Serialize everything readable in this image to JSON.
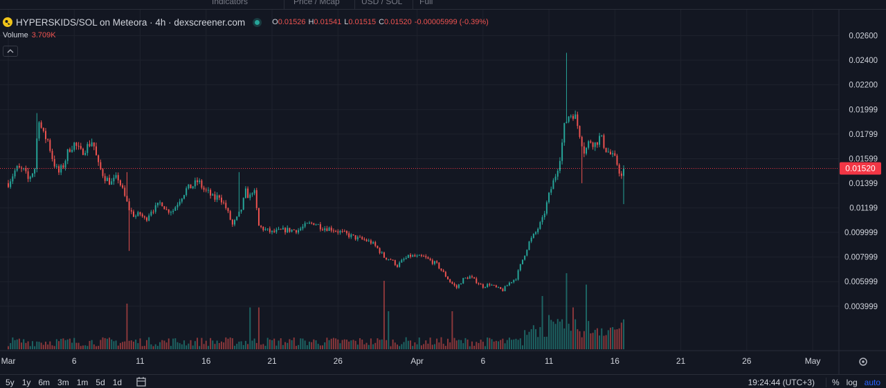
{
  "legend": {
    "symbol_title": "HYPERSKIDS/SOL on Meteora · 4h · dexscreener.com",
    "ohlc": [
      {
        "key": "O",
        "value": "0.01526"
      },
      {
        "key": "H",
        "value": "0.01541"
      },
      {
        "key": "L",
        "value": "0.01515"
      },
      {
        "key": "C",
        "value": "0.01520"
      },
      {
        "key": "",
        "value": "-0.00005999 (-0.39%)"
      }
    ],
    "volume_label": "Volume",
    "volume_value": "3.709K"
  },
  "toolbar": {
    "fragments": [
      "Indicators",
      "Price / Mcap",
      "USD / SOL",
      "Full"
    ]
  },
  "bottom_bar": {
    "ranges": [
      "5y",
      "1y",
      "6m",
      "3m",
      "1m",
      "5d",
      "1d"
    ],
    "clock": "19:24:44 (UTC+3)",
    "percent": "%",
    "log": "log",
    "auto": "auto"
  },
  "colors": {
    "background": "#131722",
    "up": "#26a69a",
    "down": "#ef5350",
    "grid": "#1e222d",
    "last_price_tag": "#f23645"
  },
  "chart_data": {
    "type": "candlestick",
    "title": "HYPERSKIDS/SOL on Meteora · 4h · dexscreener.com",
    "interval": "4h",
    "y_ticks": [
      "0.02600",
      "0.02400",
      "0.02200",
      "0.01999",
      "0.01799",
      "0.01599",
      "0.01399",
      "0.01199",
      "0.009999",
      "0.007999",
      "0.005999",
      "0.003999"
    ],
    "ylim": [
      0.0023,
      0.0267
    ],
    "x_ticks": [
      {
        "label": "Mar",
        "day": 0
      },
      {
        "label": "6",
        "day": 5
      },
      {
        "label": "11",
        "day": 10
      },
      {
        "label": "16",
        "day": 15
      },
      {
        "label": "21",
        "day": 20
      },
      {
        "label": "26",
        "day": 25
      },
      {
        "label": "Apr",
        "day": 31
      },
      {
        "label": "6",
        "day": 36
      },
      {
        "label": "11",
        "day": 41
      },
      {
        "label": "16",
        "day": 46
      },
      {
        "label": "21",
        "day": 51
      },
      {
        "label": "26",
        "day": 56
      },
      {
        "label": "May",
        "day": 61
      }
    ],
    "last_price": 0.0152,
    "last_price_label": "0.01520",
    "volume_label": "Volume",
    "volume_last": "3.709K",
    "price_anchors": [
      [
        0,
        0.014
      ],
      [
        0.6,
        0.0152
      ],
      [
        1.2,
        0.015
      ],
      [
        1.5,
        0.0143
      ],
      [
        2.0,
        0.0152
      ],
      [
        2.3,
        0.0195
      ],
      [
        2.6,
        0.018
      ],
      [
        3.0,
        0.0175
      ],
      [
        3.4,
        0.0158
      ],
      [
        3.8,
        0.0148
      ],
      [
        4.2,
        0.0155
      ],
      [
        4.6,
        0.0168
      ],
      [
        5.0,
        0.0172
      ],
      [
        5.5,
        0.0165
      ],
      [
        6.0,
        0.017
      ],
      [
        6.4,
        0.0175
      ],
      [
        6.8,
        0.0155
      ],
      [
        7.3,
        0.0145
      ],
      [
        7.8,
        0.014
      ],
      [
        8.3,
        0.0145
      ],
      [
        8.8,
        0.013
      ],
      [
        9.2,
        0.0118
      ],
      [
        9.6,
        0.0113
      ],
      [
        10.0,
        0.0115
      ],
      [
        10.4,
        0.011
      ],
      [
        10.8,
        0.0118
      ],
      [
        11.2,
        0.012
      ],
      [
        11.6,
        0.0125
      ],
      [
        12.0,
        0.0118
      ],
      [
        12.5,
        0.0118
      ],
      [
        13.0,
        0.0127
      ],
      [
        13.5,
        0.0135
      ],
      [
        14.0,
        0.0138
      ],
      [
        14.4,
        0.0142
      ],
      [
        14.8,
        0.0135
      ],
      [
        15.2,
        0.0132
      ],
      [
        15.6,
        0.0127
      ],
      [
        16.0,
        0.013
      ],
      [
        16.5,
        0.012
      ],
      [
        17.0,
        0.0106
      ],
      [
        17.4,
        0.0112
      ],
      [
        17.7,
        0.012
      ],
      [
        18.0,
        0.0133
      ],
      [
        18.3,
        0.0128
      ],
      [
        18.6,
        0.0137
      ],
      [
        19.0,
        0.0105
      ],
      [
        19.5,
        0.0102
      ],
      [
        20.0,
        0.01
      ],
      [
        21.0,
        0.0102
      ],
      [
        22.0,
        0.0102
      ],
      [
        22.6,
        0.0106
      ],
      [
        23.2,
        0.0108
      ],
      [
        23.8,
        0.0104
      ],
      [
        24.5,
        0.0103
      ],
      [
        25.0,
        0.0101
      ],
      [
        25.5,
        0.0099
      ],
      [
        26.0,
        0.0097
      ],
      [
        26.5,
        0.0095
      ],
      [
        27.0,
        0.0094
      ],
      [
        27.5,
        0.0092
      ],
      [
        28.0,
        0.0087
      ],
      [
        28.5,
        0.008
      ],
      [
        29.0,
        0.0078
      ],
      [
        29.5,
        0.0073
      ],
      [
        30.0,
        0.0078
      ],
      [
        30.5,
        0.0081
      ],
      [
        31.0,
        0.008
      ],
      [
        31.5,
        0.008
      ],
      [
        32.0,
        0.0077
      ],
      [
        32.5,
        0.0074
      ],
      [
        33.0,
        0.0067
      ],
      [
        33.5,
        0.006
      ],
      [
        34.0,
        0.0055
      ],
      [
        34.5,
        0.0062
      ],
      [
        35.0,
        0.0064
      ],
      [
        35.5,
        0.006
      ],
      [
        36.0,
        0.0056
      ],
      [
        36.5,
        0.0058
      ],
      [
        37.0,
        0.0055
      ],
      [
        37.5,
        0.0053
      ],
      [
        38.0,
        0.0059
      ],
      [
        38.5,
        0.0063
      ],
      [
        39.0,
        0.0078
      ],
      [
        39.5,
        0.0092
      ],
      [
        40.0,
        0.01
      ],
      [
        40.5,
        0.011
      ],
      [
        41.0,
        0.013
      ],
      [
        41.3,
        0.014
      ],
      [
        41.6,
        0.015
      ],
      [
        41.9,
        0.0165
      ],
      [
        42.2,
        0.0188
      ],
      [
        42.5,
        0.0195
      ],
      [
        42.9,
        0.0197
      ],
      [
        43.3,
        0.0182
      ],
      [
        43.7,
        0.0165
      ],
      [
        44.1,
        0.0175
      ],
      [
        44.5,
        0.0172
      ],
      [
        44.9,
        0.0178
      ],
      [
        45.3,
        0.0168
      ],
      [
        45.7,
        0.0163
      ],
      [
        46.1,
        0.0158
      ],
      [
        46.4,
        0.0148
      ],
      [
        46.6,
        0.0142
      ],
      [
        46.8,
        0.0152
      ]
    ],
    "spikes": [
      {
        "day": 42.3,
        "high": 0.0246
      },
      {
        "day": 2.2,
        "high": 0.0197
      },
      {
        "day": 9.0,
        "high": 0.0149
      },
      {
        "day": 9.1,
        "low": 0.0085
      },
      {
        "day": 17.5,
        "high": 0.0149
      },
      {
        "day": 43.5,
        "low": 0.014
      },
      {
        "day": 46.6,
        "low": 0.0123
      }
    ],
    "volume_spikes": [
      {
        "day": 9.0,
        "value": 0.6
      },
      {
        "day": 18.3,
        "value": 0.55
      },
      {
        "day": 19.0,
        "value": 0.55
      },
      {
        "day": 28.5,
        "value": 0.9
      },
      {
        "day": 28.8,
        "value": 0.5
      },
      {
        "day": 33.7,
        "value": 0.5
      },
      {
        "day": 40.5,
        "value": 0.7
      },
      {
        "day": 41.0,
        "value": 0.45
      },
      {
        "day": 42.3,
        "value": 1.0
      },
      {
        "day": 42.8,
        "value": 0.55
      },
      {
        "day": 43.8,
        "value": 0.85
      },
      {
        "day": 46.5,
        "value": 0.35
      }
    ]
  }
}
